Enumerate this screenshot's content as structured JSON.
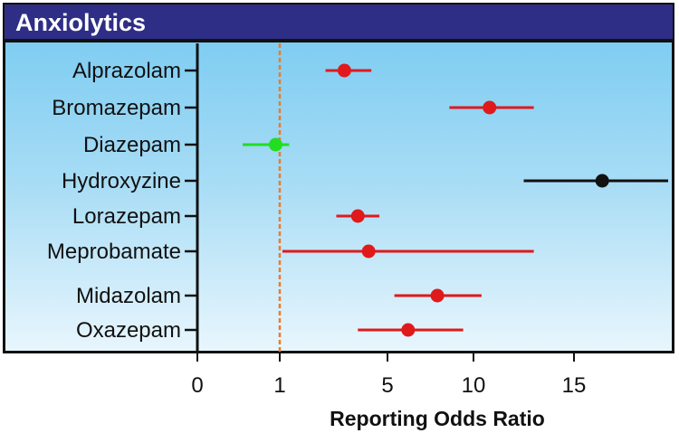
{
  "title": "Anxiolytics",
  "chart_data": {
    "type": "forest",
    "title": "Anxiolytics",
    "xlabel": "Reporting Odds Ratio",
    "ylabel": "",
    "x_ticks": [
      "0",
      "1",
      "5",
      "10",
      "15"
    ],
    "reference_line": 1,
    "points": [
      {
        "label": "Alprazolam",
        "value": 3.4,
        "ci_low": 2.7,
        "ci_high": 4.4,
        "color": "#e0191b"
      },
      {
        "label": "Bromazepam",
        "value": 10.8,
        "ci_low": 8.6,
        "ci_high": 13.0,
        "color": "#e0191b"
      },
      {
        "label": "Diazepam",
        "value": 0.95,
        "ci_low": 0.55,
        "ci_high": 1.35,
        "color": "#22dd22"
      },
      {
        "label": "Hydroxyzine",
        "value": 16.5,
        "ci_low": 12.5,
        "ci_high": 20.0,
        "color": "#111111"
      },
      {
        "label": "Lorazepam",
        "value": 3.9,
        "ci_low": 3.1,
        "ci_high": 4.7,
        "color": "#e0191b"
      },
      {
        "label": "Meprobamate",
        "value": 4.3,
        "ci_low": 1.1,
        "ci_high": 13.0,
        "color": "#e0191b"
      },
      {
        "label": "Midazolam",
        "value": 7.9,
        "ci_low": 5.4,
        "ci_high": 10.4,
        "color": "#e0191b"
      },
      {
        "label": "Oxazepam",
        "value": 6.2,
        "ci_low": 3.9,
        "ci_high": 9.4,
        "color": "#e0191b"
      }
    ]
  }
}
